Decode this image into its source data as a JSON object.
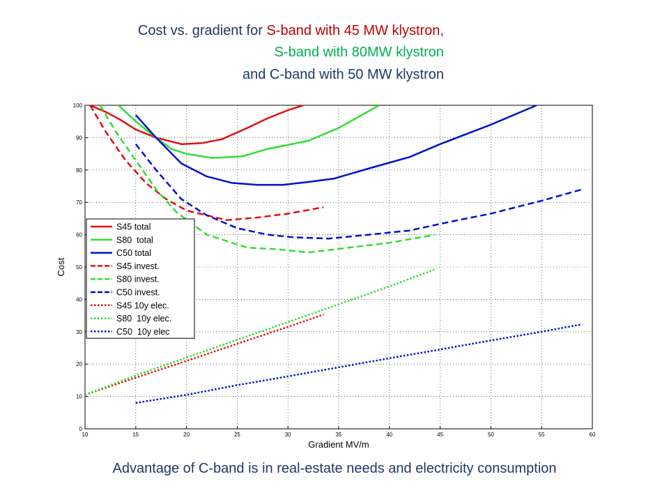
{
  "chart_data": {
    "type": "line",
    "title_lines": [
      [
        {
          "text": "Cost vs. gradient for ",
          "color": "#1f3864"
        },
        {
          "text": "S-band with 45 MW klystron",
          "color": "#c00000"
        },
        {
          "text": ",",
          "color": "#1f3864"
        }
      ],
      [
        {
          "text": "S-band with 80MW klystron",
          "color": "#00b050"
        }
      ],
      [
        {
          "text": "and C-band with 50 MW klystron",
          "color": "#1f3864"
        }
      ]
    ],
    "xlabel": "Gradient MV/m",
    "ylabel": "Cost",
    "footer": "Advantage of C-band is in real-estate needs and electricity consumption",
    "xlim": [
      10,
      60
    ],
    "xticks": [
      10,
      15,
      20,
      25,
      30,
      35,
      40,
      45,
      50,
      55,
      60
    ],
    "ylim": [
      0,
      100
    ],
    "yticks": [
      0,
      10,
      20,
      30,
      40,
      50,
      60,
      70,
      80,
      90,
      100
    ],
    "grid": true,
    "legend": "left",
    "series": [
      {
        "name": "S45 total",
        "color": "#e01010",
        "style": "solid",
        "x": [
          10.5,
          12,
          13.5,
          15,
          17,
          19.5,
          21.5,
          23.5,
          26,
          28,
          30,
          31.5
        ],
        "values": [
          100,
          98,
          95.5,
          92.5,
          90,
          88,
          88.3,
          89.5,
          93,
          96,
          98.5,
          100
        ]
      },
      {
        "name": "S80  total",
        "color": "#33dd33",
        "style": "solid",
        "x": [
          13.3,
          15,
          17,
          18.5,
          20,
          22.5,
          25.5,
          28,
          32,
          35,
          39
        ],
        "values": [
          100,
          95,
          90,
          86.5,
          85,
          83.7,
          84.2,
          86.5,
          89,
          93,
          100
        ]
      },
      {
        "name": "C50 total",
        "color": "#0010cc",
        "style": "solid",
        "x": [
          15,
          17,
          19.5,
          22,
          24.5,
          27,
          29.5,
          32,
          34.5,
          38,
          42,
          45,
          50,
          54.5
        ],
        "values": [
          97,
          90,
          82,
          78,
          76,
          75.4,
          75.4,
          76.3,
          77.3,
          80.5,
          84,
          88,
          94,
          100
        ]
      },
      {
        "name": "S45 invest.",
        "color": "#e01010",
        "style": "dashed",
        "x": [
          10.5,
          12,
          14,
          16,
          18,
          20,
          22,
          24,
          27,
          30,
          33.5
        ],
        "values": [
          100,
          92,
          83,
          76,
          71,
          67.5,
          66,
          64.5,
          65.3,
          66.5,
          68.5
        ]
      },
      {
        "name": "S80 invest.",
        "color": "#33dd33",
        "style": "dashed",
        "x": [
          11.5,
          13,
          15,
          17,
          19,
          22,
          26,
          29,
          32,
          36,
          40,
          44.5
        ],
        "values": [
          100,
          92,
          83,
          74,
          67,
          60,
          56,
          55.5,
          54.5,
          56,
          57.5,
          60
        ]
      },
      {
        "name": "C50 invest.",
        "color": "#0010cc",
        "style": "dashed",
        "x": [
          15,
          17,
          19.5,
          22,
          25,
          28,
          30.5,
          34,
          38,
          42,
          46,
          50,
          55,
          59
        ],
        "values": [
          88,
          80,
          71,
          66,
          62,
          60,
          59.2,
          58.8,
          60,
          61.3,
          64,
          66.5,
          70.5,
          74
        ]
      },
      {
        "name": "S45 10y elec.",
        "color": "#e01010",
        "style": "dotted",
        "x": [
          10,
          15,
          20,
          25,
          30,
          33.5
        ],
        "values": [
          10.5,
          15.8,
          21,
          26.3,
          31.5,
          35.3
        ]
      },
      {
        "name": "S80  10y elec.",
        "color": "#33dd33",
        "style": "dotted",
        "x": [
          10,
          15,
          20,
          25,
          30,
          35,
          40,
          44.5
        ],
        "values": [
          10.5,
          16.5,
          22,
          27.5,
          33,
          38.5,
          44,
          49.3
        ]
      },
      {
        "name": "C50  10y elec",
        "color": "#0010cc",
        "style": "dotted",
        "x": [
          15,
          20,
          25,
          30,
          35,
          40,
          45,
          50,
          55,
          59
        ],
        "values": [
          8,
          10.5,
          13.5,
          16.2,
          19,
          21.8,
          24.5,
          27.3,
          30,
          32.3
        ]
      }
    ]
  }
}
